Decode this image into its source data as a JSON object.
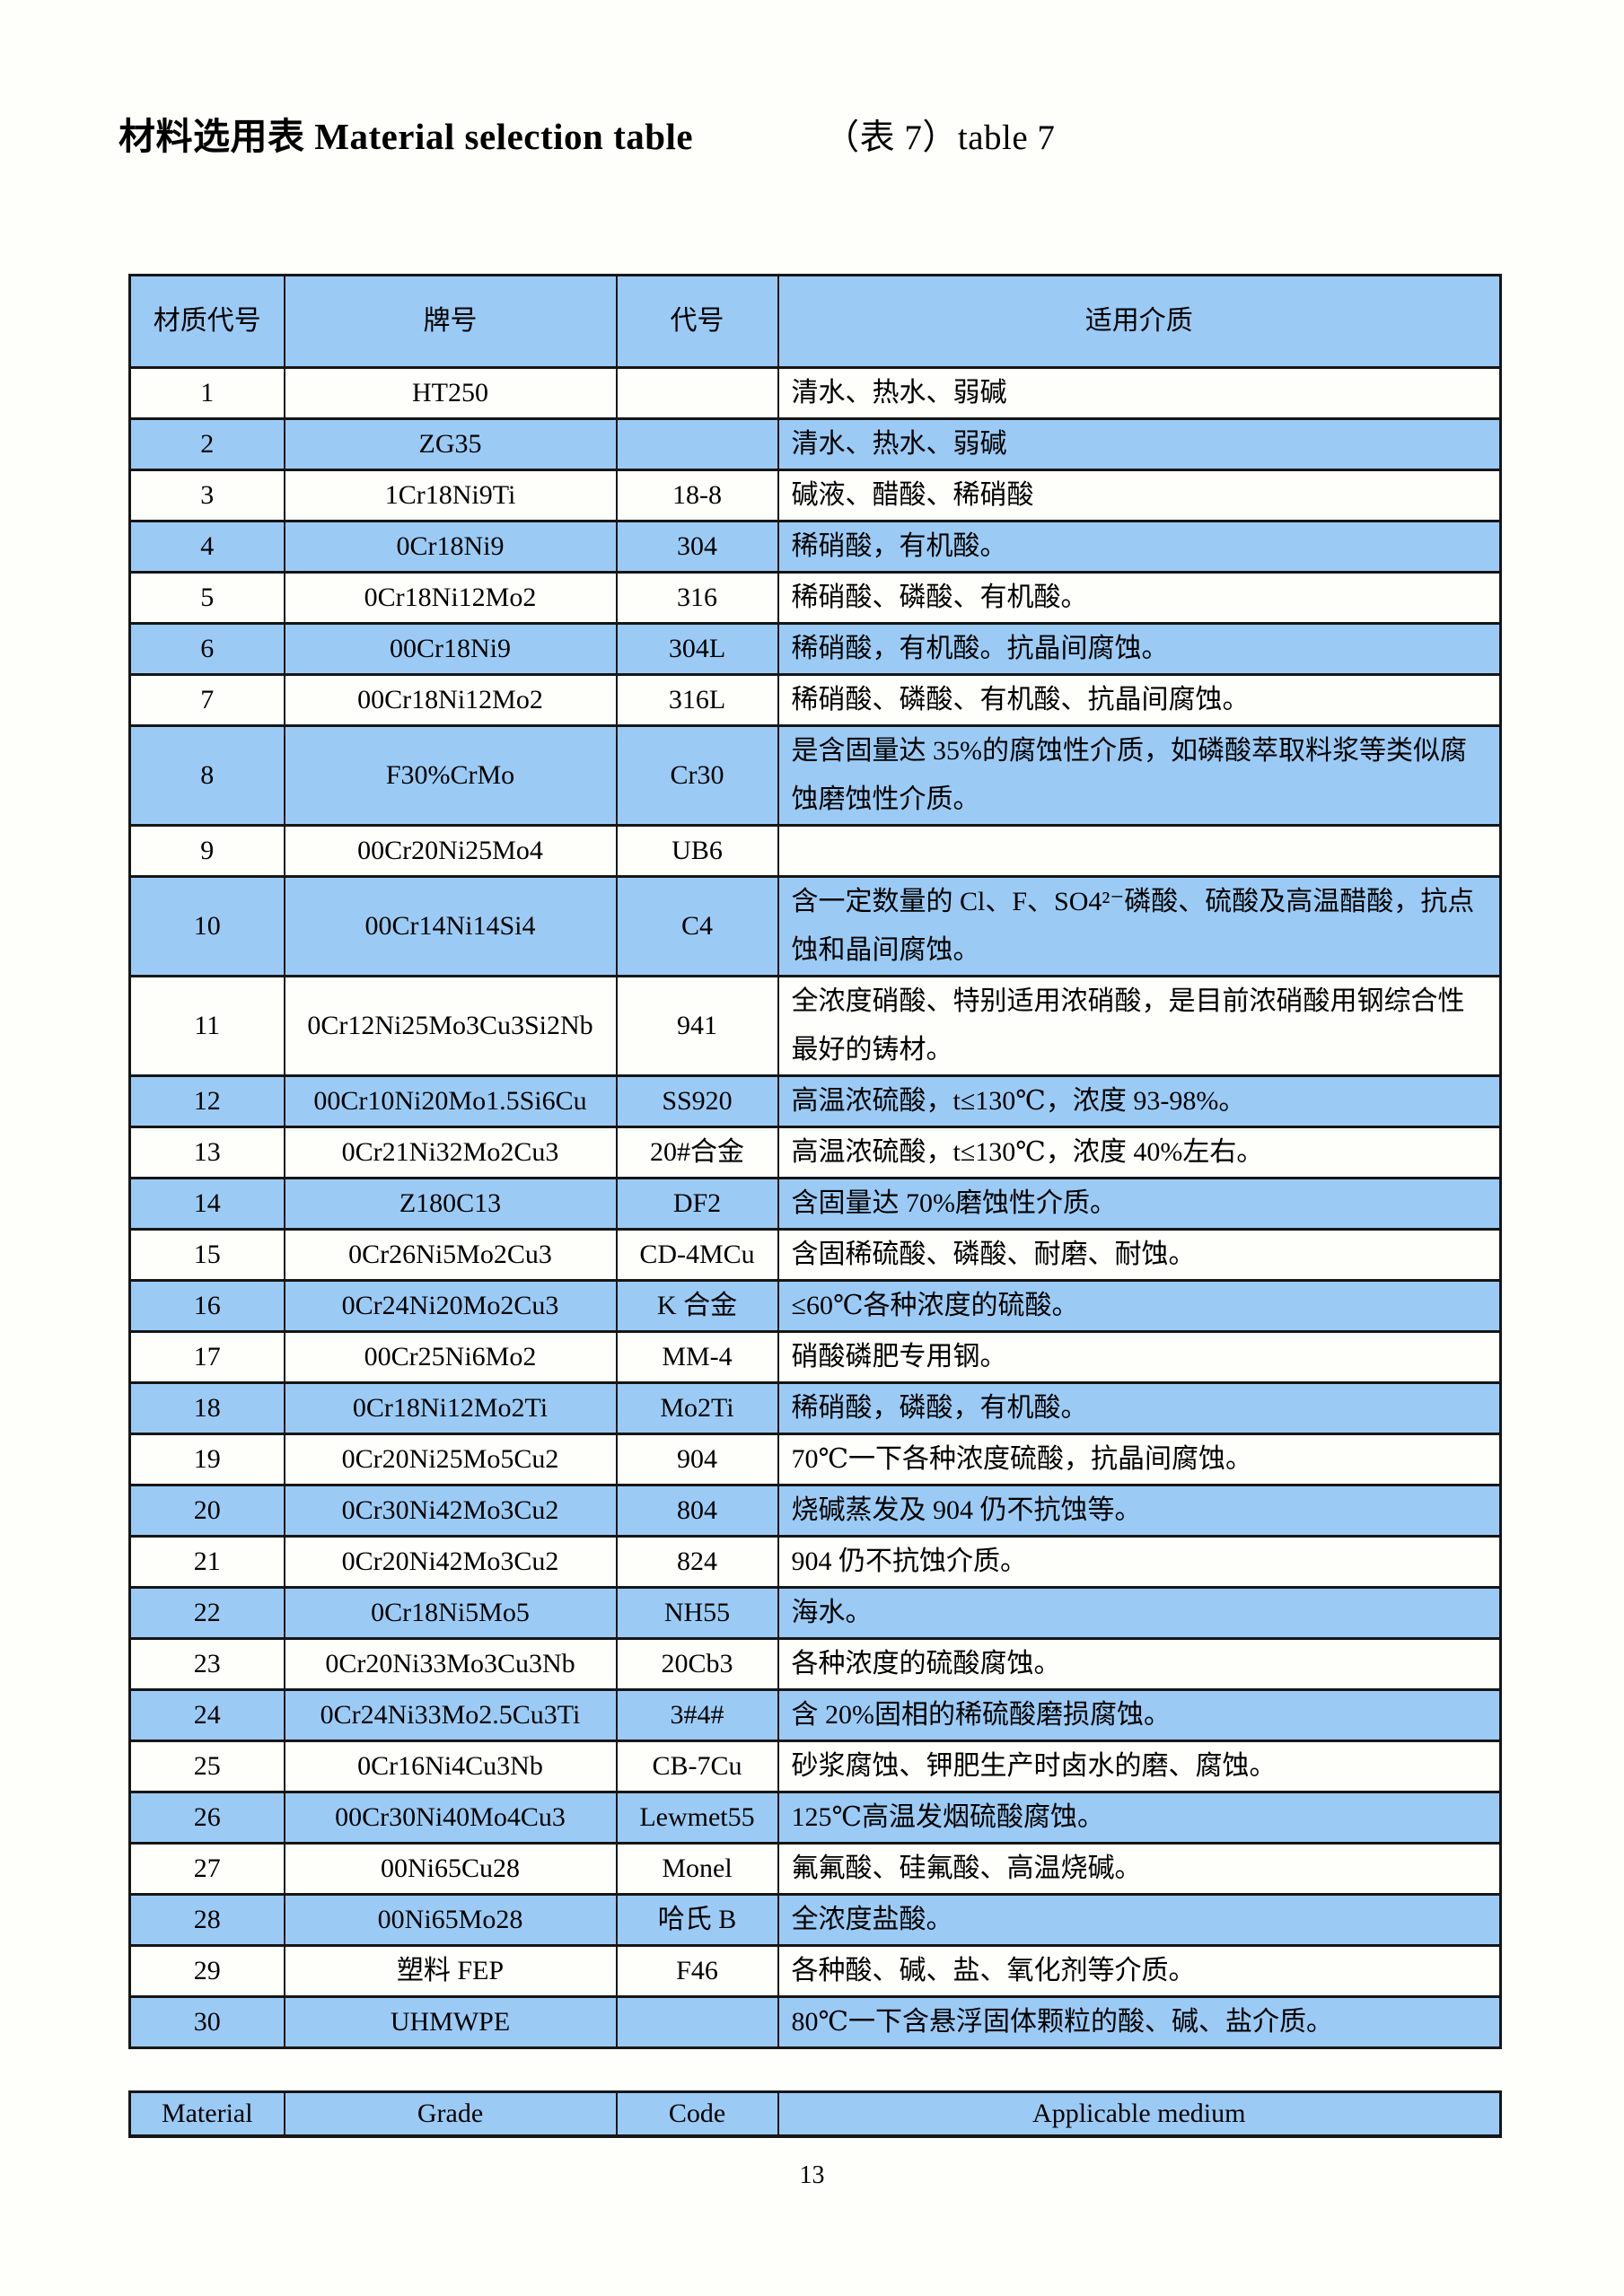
{
  "title": {
    "main": "材料选用表 Material selection table",
    "sub": "（表 7）table 7"
  },
  "colors": {
    "shaded_row_blue": "#9bcbf5",
    "border_black": "#161616",
    "page_background": "#fefefb",
    "text": "#000000"
  },
  "table": {
    "headers": [
      "材质代号",
      "牌号",
      "代号",
      "适用介质"
    ],
    "rows": [
      {
        "material": "1",
        "grade": "HT250",
        "code": "",
        "medium": "清水、热水、弱碱"
      },
      {
        "material": "2",
        "grade": "ZG35",
        "code": "",
        "medium": "清水、热水、弱碱"
      },
      {
        "material": "3",
        "grade": "1Cr18Ni9Ti",
        "code": "18-8",
        "medium": "碱液、醋酸、稀硝酸"
      },
      {
        "material": "4",
        "grade": "0Cr18Ni9",
        "code": "304",
        "medium": "稀硝酸，有机酸。"
      },
      {
        "material": "5",
        "grade": "0Cr18Ni12Mo2",
        "code": "316",
        "medium": "稀硝酸、磷酸、有机酸。"
      },
      {
        "material": "6",
        "grade": "00Cr18Ni9",
        "code": "304L",
        "medium": "稀硝酸，有机酸。抗晶间腐蚀。"
      },
      {
        "material": "7",
        "grade": "00Cr18Ni12Mo2",
        "code": "316L",
        "medium": "稀硝酸、磷酸、有机酸、抗晶间腐蚀。"
      },
      {
        "material": "8",
        "grade": "F30%CrMo",
        "code": "Cr30",
        "medium": "是含固量达 35%的腐蚀性介质，如磷酸萃取料浆等类似腐蚀磨蚀性介质。"
      },
      {
        "material": "9",
        "grade": "00Cr20Ni25Mo4",
        "code": "UB6",
        "medium": ""
      },
      {
        "material": "10",
        "grade": "00Cr14Ni14Si4",
        "code": "C4",
        "medium": "含一定数量的 Cl、F、SO4²⁻磷酸、硫酸及高温醋酸，抗点蚀和晶间腐蚀。"
      },
      {
        "material": "11",
        "grade": "0Cr12Ni25Mo3Cu3Si2Nb",
        "code": "941",
        "medium": "全浓度硝酸、特别适用浓硝酸，是目前浓硝酸用钢综合性最好的铸材。"
      },
      {
        "material": "12",
        "grade": "00Cr10Ni20Mo1.5Si6Cu",
        "code": "SS920",
        "medium": "高温浓硫酸，t≤130℃，浓度 93-98%。"
      },
      {
        "material": "13",
        "grade": "0Cr21Ni32Mo2Cu3",
        "code": "20#合金",
        "medium": "高温浓硫酸，t≤130℃，浓度 40%左右。"
      },
      {
        "material": "14",
        "grade": "Z180C13",
        "code": "DF2",
        "medium": "含固量达 70%磨蚀性介质。"
      },
      {
        "material": "15",
        "grade": "0Cr26Ni5Mo2Cu3",
        "code": "CD-4MCu",
        "medium": "含固稀硫酸、磷酸、耐磨、耐蚀。"
      },
      {
        "material": "16",
        "grade": "0Cr24Ni20Mo2Cu3",
        "code": "K 合金",
        "medium": "≤60℃各种浓度的硫酸。"
      },
      {
        "material": "17",
        "grade": "00Cr25Ni6Mo2",
        "code": "MM-4",
        "medium": "硝酸磷肥专用钢。"
      },
      {
        "material": "18",
        "grade": "0Cr18Ni12Mo2Ti",
        "code": "Mo2Ti",
        "medium": "稀硝酸，磷酸，有机酸。"
      },
      {
        "material": "19",
        "grade": "0Cr20Ni25Mo5Cu2",
        "code": "904",
        "medium": "70℃一下各种浓度硫酸，抗晶间腐蚀。"
      },
      {
        "material": "20",
        "grade": "0Cr30Ni42Mo3Cu2",
        "code": "804",
        "medium": "烧碱蒸发及 904 仍不抗蚀等。"
      },
      {
        "material": "21",
        "grade": "0Cr20Ni42Mo3Cu2",
        "code": "824",
        "medium": "904 仍不抗蚀介质。"
      },
      {
        "material": "22",
        "grade": "0Cr18Ni5Mo5",
        "code": "NH55",
        "medium": "海水。"
      },
      {
        "material": "23",
        "grade": "0Cr20Ni33Mo3Cu3Nb",
        "code": "20Cb3",
        "medium": "各种浓度的硫酸腐蚀。"
      },
      {
        "material": "24",
        "grade": "0Cr24Ni33Mo2.5Cu3Ti",
        "code": "3#4#",
        "medium": "含 20%固相的稀硫酸磨损腐蚀。"
      },
      {
        "material": "25",
        "grade": "0Cr16Ni4Cu3Nb",
        "code": "CB-7Cu",
        "medium": "砂浆腐蚀、钾肥生产时卤水的磨、腐蚀。"
      },
      {
        "material": "26",
        "grade": "00Cr30Ni40Mo4Cu3",
        "code": "Lewmet55",
        "medium": "125℃高温发烟硫酸腐蚀。"
      },
      {
        "material": "27",
        "grade": "00Ni65Cu28",
        "code": "Monel",
        "medium": "氟氟酸、硅氟酸、高温烧碱。"
      },
      {
        "material": "28",
        "grade": "00Ni65Mo28",
        "code": "哈氏 B",
        "medium": "全浓度盐酸。"
      },
      {
        "material": "29",
        "grade": "塑料 FEP",
        "code": "F46",
        "medium": "各种酸、碱、盐、氧化剂等介质。"
      },
      {
        "material": "30",
        "grade": "UHMWPE",
        "code": "",
        "medium": "80℃一下含悬浮固体颗粒的酸、碱、盐介质。"
      }
    ]
  },
  "footer": {
    "headers": [
      "Material",
      "Grade",
      "Code",
      "Applicable medium"
    ]
  },
  "page": {
    "number": "13"
  }
}
